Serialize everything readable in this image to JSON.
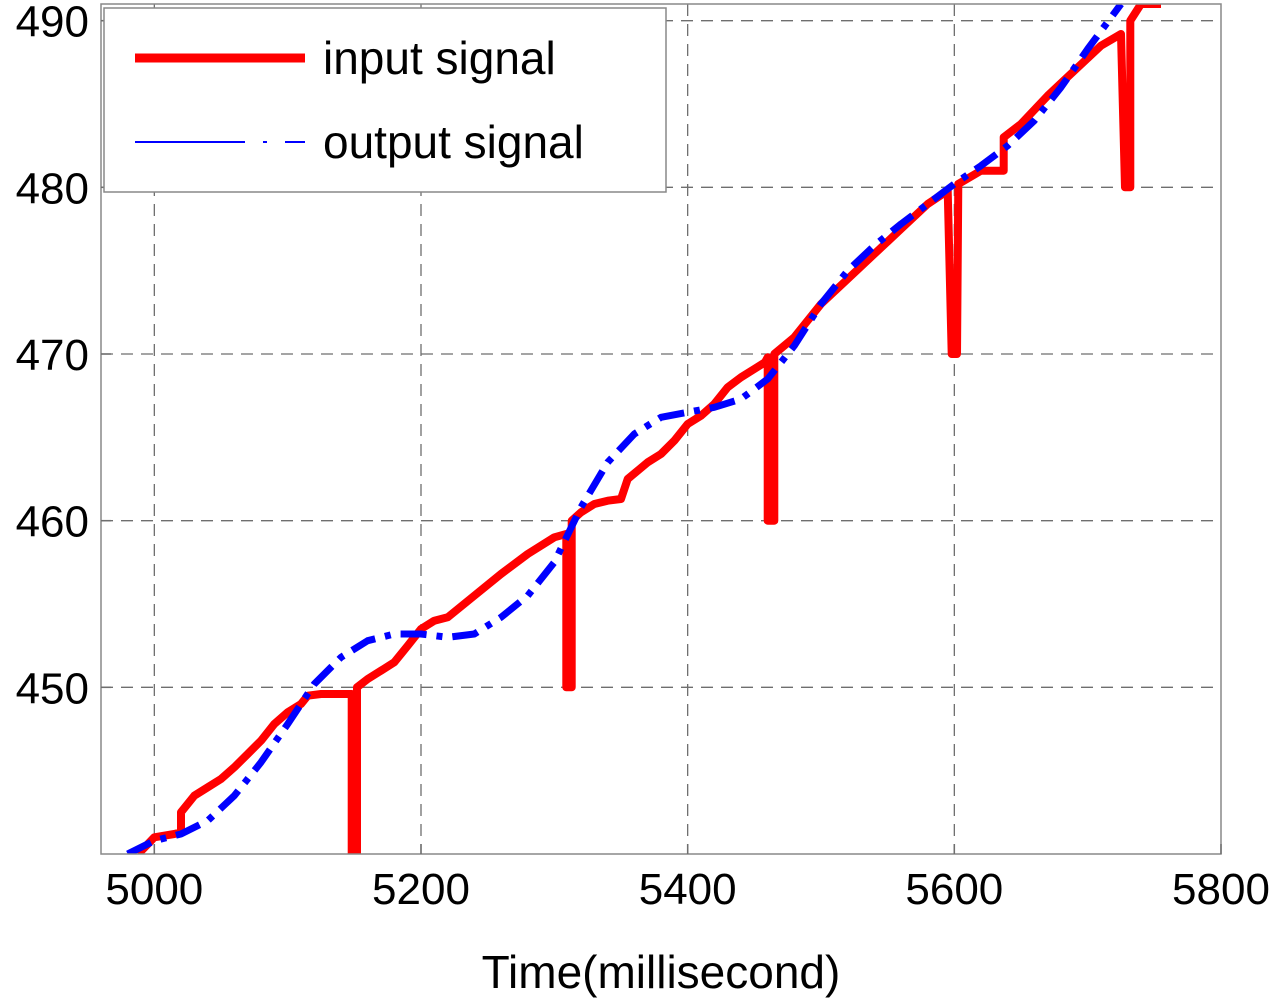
{
  "chart_data": {
    "type": "line",
    "title": "",
    "xlabel": "Time(millisecond)",
    "ylabel": "",
    "xlim": [
      4960,
      5800
    ],
    "ylim": [
      440,
      491
    ],
    "xticks": [
      5000,
      5200,
      5400,
      5600,
      5800
    ],
    "yticks": [
      450,
      460,
      470,
      480,
      490
    ],
    "x_tick_labels": [
      "5000",
      "5200",
      "5400",
      "5600",
      "5800"
    ],
    "y_tick_labels": [
      "450",
      "460",
      "470",
      "480",
      "490"
    ],
    "grid": true,
    "legend_position": "top-left",
    "series": [
      {
        "name": "input signal",
        "color": "#ff0000",
        "style": "solid",
        "points": [
          [
            4988,
            440
          ],
          [
            5000,
            441
          ],
          [
            5015,
            441.2
          ],
          [
            5020,
            441.3
          ],
          [
            5020,
            442.5
          ],
          [
            5030,
            443.5
          ],
          [
            5040,
            444
          ],
          [
            5050,
            444.5
          ],
          [
            5060,
            445.2
          ],
          [
            5070,
            446
          ],
          [
            5080,
            446.8
          ],
          [
            5090,
            447.8
          ],
          [
            5100,
            448.5
          ],
          [
            5110,
            449
          ],
          [
            5115,
            449.5
          ],
          [
            5125,
            449.6
          ],
          [
            5140,
            449.6
          ],
          [
            5148,
            449.6
          ],
          [
            5148,
            440
          ],
          [
            5152,
            440
          ],
          [
            5152,
            450
          ],
          [
            5160,
            450.5
          ],
          [
            5170,
            451
          ],
          [
            5180,
            451.5
          ],
          [
            5190,
            452.5
          ],
          [
            5200,
            453.5
          ],
          [
            5210,
            454
          ],
          [
            5220,
            454.2
          ],
          [
            5240,
            455.5
          ],
          [
            5260,
            456.8
          ],
          [
            5280,
            458
          ],
          [
            5300,
            459
          ],
          [
            5309,
            459.2
          ],
          [
            5309,
            450
          ],
          [
            5313,
            450
          ],
          [
            5313,
            460
          ],
          [
            5320,
            460.5
          ],
          [
            5330,
            461
          ],
          [
            5340,
            461.2
          ],
          [
            5350,
            461.3
          ],
          [
            5355,
            462.5
          ],
          [
            5370,
            463.5
          ],
          [
            5380,
            464
          ],
          [
            5390,
            464.8
          ],
          [
            5400,
            465.8
          ],
          [
            5410,
            466.3
          ],
          [
            5420,
            467
          ],
          [
            5430,
            468
          ],
          [
            5440,
            468.6
          ],
          [
            5450,
            469.1
          ],
          [
            5458,
            469.5
          ],
          [
            5460,
            469.8
          ],
          [
            5460,
            460
          ],
          [
            5465,
            460
          ],
          [
            5465,
            470
          ],
          [
            5480,
            471
          ],
          [
            5500,
            473
          ],
          [
            5520,
            474.5
          ],
          [
            5540,
            476
          ],
          [
            5560,
            477.5
          ],
          [
            5580,
            479
          ],
          [
            5595,
            479.8
          ],
          [
            5598,
            470
          ],
          [
            5602,
            470
          ],
          [
            5603,
            480.2
          ],
          [
            5620,
            481
          ],
          [
            5637,
            481
          ],
          [
            5637,
            483
          ],
          [
            5650,
            483.8
          ],
          [
            5670,
            485.5
          ],
          [
            5690,
            487
          ],
          [
            5710,
            488.5
          ],
          [
            5725,
            489.2
          ],
          [
            5728,
            480
          ],
          [
            5732,
            480
          ],
          [
            5732,
            490
          ],
          [
            5740,
            491
          ],
          [
            5755,
            491
          ]
        ]
      },
      {
        "name": "output signal",
        "color": "#0000ff",
        "style": "dashdot",
        "points": [
          [
            4980,
            440
          ],
          [
            5000,
            440.8
          ],
          [
            5020,
            441.2
          ],
          [
            5040,
            442
          ],
          [
            5060,
            443.5
          ],
          [
            5080,
            445.5
          ],
          [
            5100,
            447.8
          ],
          [
            5120,
            450.2
          ],
          [
            5140,
            451.8
          ],
          [
            5160,
            452.8
          ],
          [
            5180,
            453.2
          ],
          [
            5200,
            453.2
          ],
          [
            5220,
            453
          ],
          [
            5240,
            453.2
          ],
          [
            5260,
            454.2
          ],
          [
            5280,
            455.5
          ],
          [
            5300,
            457.5
          ],
          [
            5320,
            460.8
          ],
          [
            5340,
            463.5
          ],
          [
            5360,
            465.2
          ],
          [
            5380,
            466.2
          ],
          [
            5400,
            466.5
          ],
          [
            5420,
            466.8
          ],
          [
            5440,
            467.3
          ],
          [
            5460,
            468.5
          ],
          [
            5480,
            470.5
          ],
          [
            5500,
            473
          ],
          [
            5520,
            475
          ],
          [
            5540,
            476.5
          ],
          [
            5560,
            477.8
          ],
          [
            5580,
            479
          ],
          [
            5600,
            480.2
          ],
          [
            5620,
            481.3
          ],
          [
            5640,
            482.5
          ],
          [
            5660,
            484
          ],
          [
            5680,
            486
          ],
          [
            5700,
            488.3
          ],
          [
            5725,
            491
          ]
        ]
      }
    ]
  }
}
